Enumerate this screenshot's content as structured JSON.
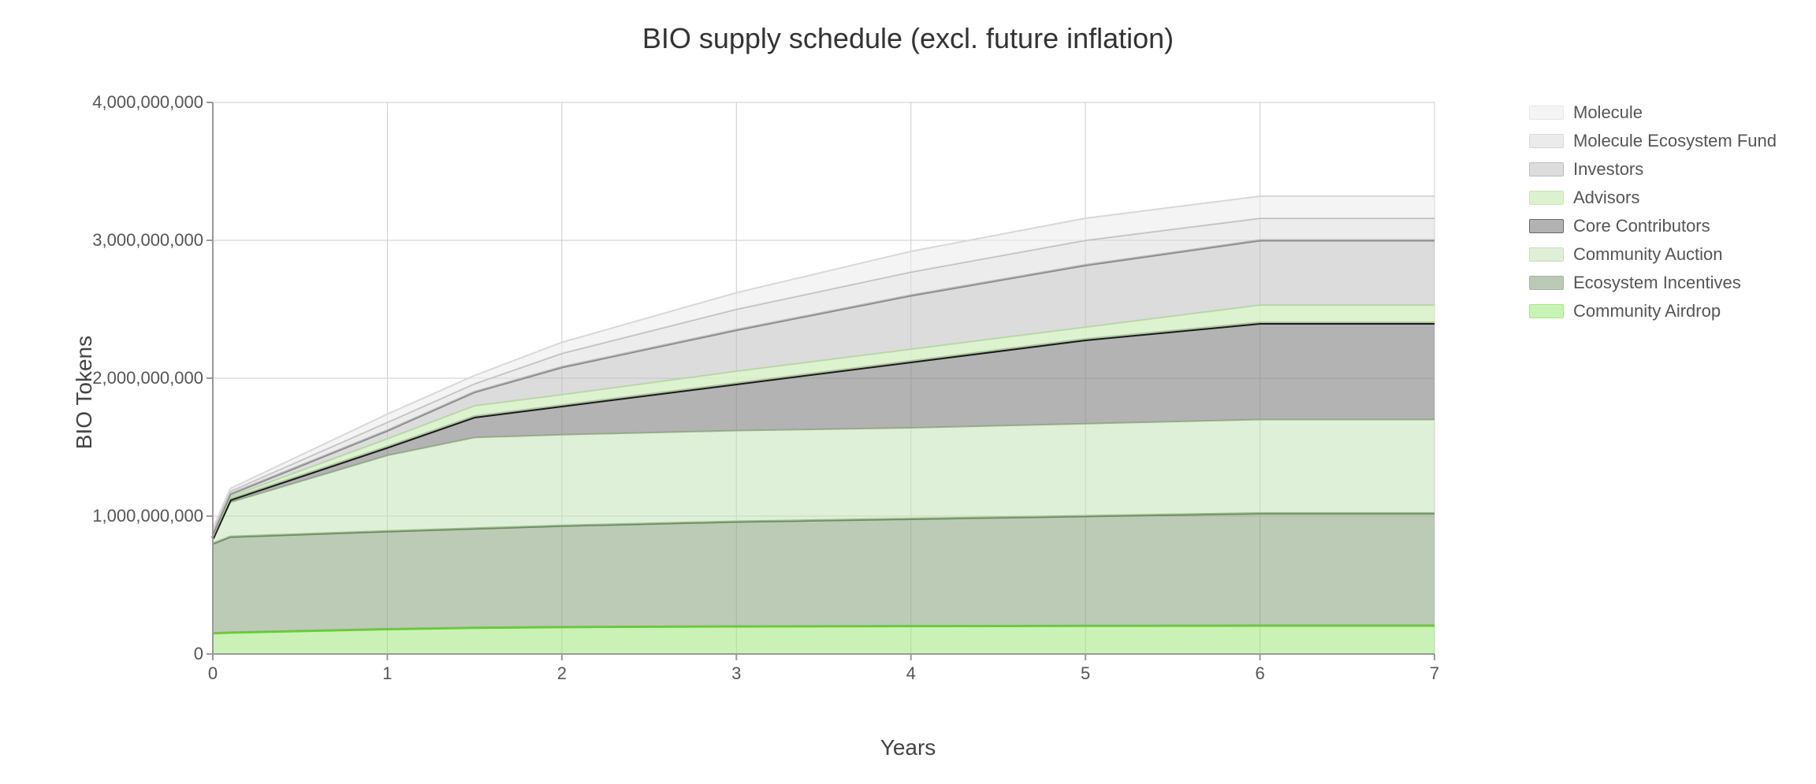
{
  "chart": {
    "type": "stacked-area",
    "title": "BIO supply schedule (excl. future inflation)",
    "y_label": "BIO Tokens",
    "x_label": "Years",
    "title_fontsize": 36,
    "axis_label_fontsize": 28,
    "tick_fontsize": 22,
    "legend_fontsize": 22,
    "background_color": "#ffffff",
    "grid_color": "#cccccc",
    "axis_color": "#999999",
    "x_range": [
      0,
      7
    ],
    "y_range": [
      0,
      4000000000
    ],
    "x_ticks": [
      0,
      1,
      2,
      3,
      4,
      5,
      6,
      7
    ],
    "y_ticks": [
      0,
      1000000000,
      2000000000,
      3000000000,
      4000000000
    ],
    "y_tick_labels": [
      "0",
      "1,000,000,000",
      "2,000,000,000",
      "3,000,000,000",
      "4,000,000,000"
    ],
    "x_points": [
      0,
      0.1,
      1,
      1.5,
      2,
      3,
      4,
      5,
      6,
      7
    ],
    "series": [
      {
        "name": "Community Airdrop",
        "fill": "#9ee87a",
        "fill_opacity": 0.55,
        "stroke": "#5fd425",
        "stroke_width": 3,
        "cumulative": [
          150000000,
          155000000,
          180000000,
          190000000,
          195000000,
          200000000,
          202000000,
          204000000,
          206000000,
          206000000
        ]
      },
      {
        "name": "Ecosystem Incentives",
        "fill": "#8fa886",
        "fill_opacity": 0.6,
        "stroke": "#6a8a5e",
        "stroke_width": 3,
        "cumulative": [
          800000000,
          850000000,
          890000000,
          910000000,
          930000000,
          960000000,
          980000000,
          1000000000,
          1020000000,
          1020000000
        ]
      },
      {
        "name": "Community Auction",
        "fill": "#c5e4b8",
        "fill_opacity": 0.55,
        "stroke": "#9ebf8f",
        "stroke_width": 2,
        "cumulative": [
          830000000,
          1100000000,
          1440000000,
          1570000000,
          1590000000,
          1620000000,
          1640000000,
          1670000000,
          1700000000,
          1700000000
        ]
      },
      {
        "name": "Core Contributors",
        "fill": "#8a8a8a",
        "fill_opacity": 0.65,
        "stroke": "#1a1a1a",
        "stroke_width": 4,
        "cumulative": [
          840000000,
          1120000000,
          1500000000,
          1720000000,
          1800000000,
          1960000000,
          2120000000,
          2280000000,
          2400000000,
          2400000000
        ]
      },
      {
        "name": "Advisors",
        "fill": "#d4f0c4",
        "fill_opacity": 0.8,
        "stroke": "#b8e0a0",
        "stroke_width": 2,
        "cumulative": [
          850000000,
          1140000000,
          1560000000,
          1800000000,
          1880000000,
          2050000000,
          2210000000,
          2370000000,
          2530000000,
          2530000000
        ]
      },
      {
        "name": "Investors",
        "fill": "#c0c0c0",
        "fill_opacity": 0.55,
        "stroke": "#888888",
        "stroke_width": 3,
        "cumulative": [
          870000000,
          1160000000,
          1620000000,
          1900000000,
          2080000000,
          2350000000,
          2600000000,
          2820000000,
          3000000000,
          3000000000
        ]
      },
      {
        "name": "Molecule Ecosystem Fund",
        "fill": "#dcdcdc",
        "fill_opacity": 0.55,
        "stroke": "#b8b8b8",
        "stroke_width": 2,
        "cumulative": [
          890000000,
          1180000000,
          1680000000,
          1960000000,
          2180000000,
          2500000000,
          2770000000,
          3000000000,
          3160000000,
          3160000000
        ]
      },
      {
        "name": "Molecule",
        "fill": "#ededed",
        "fill_opacity": 0.6,
        "stroke": "#d8d8d8",
        "stroke_width": 2,
        "cumulative": [
          910000000,
          1200000000,
          1740000000,
          2020000000,
          2260000000,
          2620000000,
          2920000000,
          3160000000,
          3320000000,
          3320000000
        ]
      }
    ],
    "legend_order": [
      "Molecule",
      "Molecule Ecosystem Fund",
      "Investors",
      "Advisors",
      "Core Contributors",
      "Community Auction",
      "Ecosystem Incentives",
      "Community Airdrop"
    ]
  }
}
